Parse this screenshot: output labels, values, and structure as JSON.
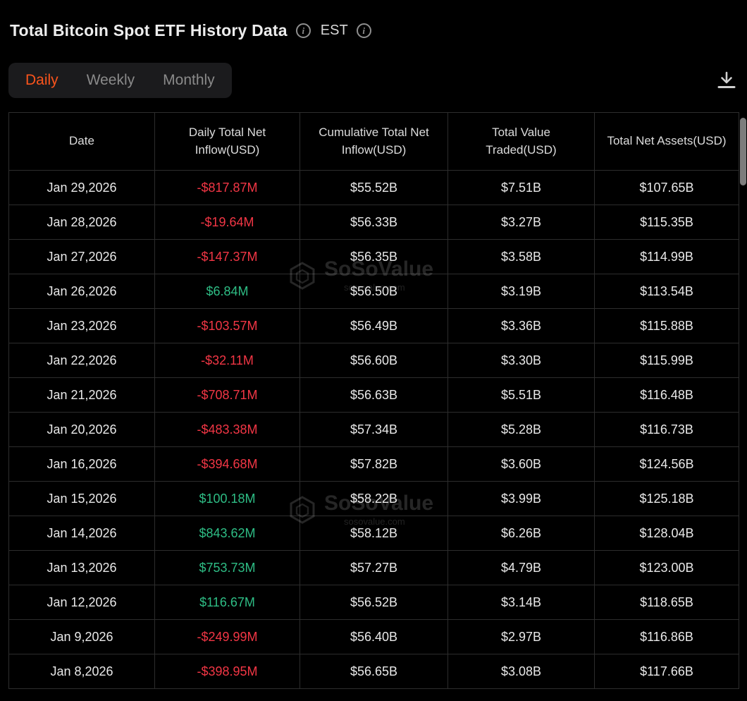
{
  "header": {
    "title": "Total Bitcoin Spot ETF History Data",
    "timezone": "EST"
  },
  "tabs": [
    {
      "label": "Daily",
      "active": true
    },
    {
      "label": "Weekly",
      "active": false
    },
    {
      "label": "Monthly",
      "active": false
    }
  ],
  "watermark": {
    "brand": "SoSoValue",
    "domain": "sosovalue.com"
  },
  "colors": {
    "accent": "#fa541c",
    "negative": "#f23645",
    "positive": "#2ebd85"
  },
  "table": {
    "columns": [
      "Date",
      "Daily Total Net Inflow(USD)",
      "Cumulative Total Net Inflow(USD)",
      "Total Value Traded(USD)",
      "Total Net Assets(USD)"
    ],
    "rows": [
      {
        "date": "Jan 29,2026",
        "daily_net_inflow": "-$817.87M",
        "cumulative_net_inflow": "$55.52B",
        "total_value_traded": "$7.51B",
        "total_net_assets": "$107.65B"
      },
      {
        "date": "Jan 28,2026",
        "daily_net_inflow": "-$19.64M",
        "cumulative_net_inflow": "$56.33B",
        "total_value_traded": "$3.27B",
        "total_net_assets": "$115.35B"
      },
      {
        "date": "Jan 27,2026",
        "daily_net_inflow": "-$147.37M",
        "cumulative_net_inflow": "$56.35B",
        "total_value_traded": "$3.58B",
        "total_net_assets": "$114.99B"
      },
      {
        "date": "Jan 26,2026",
        "daily_net_inflow": "$6.84M",
        "cumulative_net_inflow": "$56.50B",
        "total_value_traded": "$3.19B",
        "total_net_assets": "$113.54B"
      },
      {
        "date": "Jan 23,2026",
        "daily_net_inflow": "-$103.57M",
        "cumulative_net_inflow": "$56.49B",
        "total_value_traded": "$3.36B",
        "total_net_assets": "$115.88B"
      },
      {
        "date": "Jan 22,2026",
        "daily_net_inflow": "-$32.11M",
        "cumulative_net_inflow": "$56.60B",
        "total_value_traded": "$3.30B",
        "total_net_assets": "$115.99B"
      },
      {
        "date": "Jan 21,2026",
        "daily_net_inflow": "-$708.71M",
        "cumulative_net_inflow": "$56.63B",
        "total_value_traded": "$5.51B",
        "total_net_assets": "$116.48B"
      },
      {
        "date": "Jan 20,2026",
        "daily_net_inflow": "-$483.38M",
        "cumulative_net_inflow": "$57.34B",
        "total_value_traded": "$5.28B",
        "total_net_assets": "$116.73B"
      },
      {
        "date": "Jan 16,2026",
        "daily_net_inflow": "-$394.68M",
        "cumulative_net_inflow": "$57.82B",
        "total_value_traded": "$3.60B",
        "total_net_assets": "$124.56B"
      },
      {
        "date": "Jan 15,2026",
        "daily_net_inflow": "$100.18M",
        "cumulative_net_inflow": "$58.22B",
        "total_value_traded": "$3.99B",
        "total_net_assets": "$125.18B"
      },
      {
        "date": "Jan 14,2026",
        "daily_net_inflow": "$843.62M",
        "cumulative_net_inflow": "$58.12B",
        "total_value_traded": "$6.26B",
        "total_net_assets": "$128.04B"
      },
      {
        "date": "Jan 13,2026",
        "daily_net_inflow": "$753.73M",
        "cumulative_net_inflow": "$57.27B",
        "total_value_traded": "$4.79B",
        "total_net_assets": "$123.00B"
      },
      {
        "date": "Jan 12,2026",
        "daily_net_inflow": "$116.67M",
        "cumulative_net_inflow": "$56.52B",
        "total_value_traded": "$3.14B",
        "total_net_assets": "$118.65B"
      },
      {
        "date": "Jan 9,2026",
        "daily_net_inflow": "-$249.99M",
        "cumulative_net_inflow": "$56.40B",
        "total_value_traded": "$2.97B",
        "total_net_assets": "$116.86B"
      },
      {
        "date": "Jan 8,2026",
        "daily_net_inflow": "-$398.95M",
        "cumulative_net_inflow": "$56.65B",
        "total_value_traded": "$3.08B",
        "total_net_assets": "$117.66B"
      }
    ]
  }
}
